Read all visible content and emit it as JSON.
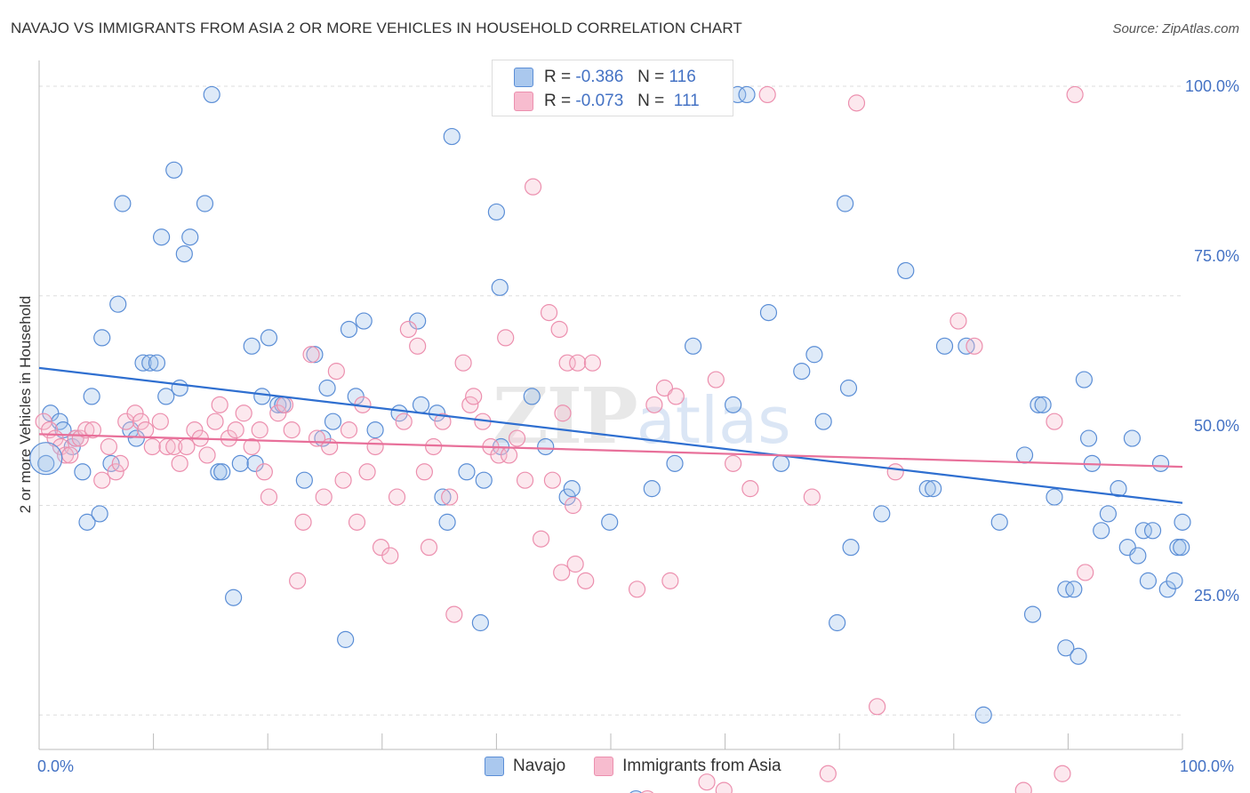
{
  "title": "NAVAJO VS IMMIGRANTS FROM ASIA 2 OR MORE VEHICLES IN HOUSEHOLD CORRELATION CHART",
  "source": "Source: ZipAtlas.com",
  "watermark": {
    "zip": "ZIP",
    "atlas": "atlas"
  },
  "legend": {
    "rows": [
      {
        "r_label": "R =",
        "r_value": "-0.386",
        "n_label": "N =",
        "n_value": "116",
        "color": "#aac8ee"
      },
      {
        "r_label": "R =",
        "r_value": "-0.073",
        "n_label": "N =",
        "n_value": "111",
        "color": "#f7bccf"
      }
    ]
  },
  "bottom_legend": [
    {
      "label": "Navajo",
      "color": "#aac8ee"
    },
    {
      "label": "Immigrants from Asia",
      "color": "#f7bccf"
    }
  ],
  "colors": {
    "navajo_stroke": "#5b8ed6",
    "navajo_fill": "rgba(160,195,235,0.35)",
    "navajo_line": "#2f6fd0",
    "asia_stroke": "#ec8fae",
    "asia_fill": "rgba(247,188,207,0.35)",
    "asia_line": "#e8709a",
    "grid": "#dddddd",
    "tick_text": "#4472c4"
  },
  "chart_data": {
    "type": "scatter",
    "title": "NAVAJO VS IMMIGRANTS FROM ASIA 2 OR MORE VEHICLES IN HOUSEHOLD CORRELATION CHART",
    "xlabel": "",
    "ylabel": "2 or more Vehicles in Household",
    "xlim": [
      0,
      100
    ],
    "ylim": [
      0,
      100
    ],
    "x_tick_labels": [
      "0.0%",
      "100.0%"
    ],
    "y_tick_labels": [
      "100.0%",
      "75.0%",
      "50.0%",
      "25.0%"
    ],
    "y_ticks": [
      100,
      75,
      50,
      25
    ],
    "grid": true,
    "legend_position": "top-center",
    "series": [
      {
        "name": "Navajo",
        "trend": {
          "x": [
            0,
            100
          ],
          "y": [
            66.4,
            50.3
          ]
        },
        "points": [
          [
            0.6,
            55
          ],
          [
            1,
            61
          ],
          [
            1.8,
            60
          ],
          [
            2.1,
            59
          ],
          [
            2.9,
            57
          ],
          [
            3.2,
            58
          ],
          [
            3.8,
            54
          ],
          [
            4.2,
            48
          ],
          [
            4.6,
            63
          ],
          [
            5.3,
            49
          ],
          [
            5.5,
            70
          ],
          [
            6.3,
            55
          ],
          [
            6.9,
            74
          ],
          [
            7.3,
            86
          ],
          [
            8,
            59
          ],
          [
            8.5,
            58
          ],
          [
            9.1,
            67
          ],
          [
            9.7,
            67
          ],
          [
            10.3,
            67
          ],
          [
            10.7,
            82
          ],
          [
            11.1,
            63
          ],
          [
            11.8,
            90
          ],
          [
            12.3,
            64
          ],
          [
            12.7,
            80
          ],
          [
            13.2,
            82
          ],
          [
            14.5,
            86
          ],
          [
            15.1,
            99
          ],
          [
            15.7,
            54
          ],
          [
            16,
            54
          ],
          [
            17,
            39
          ],
          [
            17.6,
            55
          ],
          [
            18.6,
            69
          ],
          [
            18.9,
            55
          ],
          [
            19.5,
            63
          ],
          [
            20.1,
            70
          ],
          [
            20.9,
            62
          ],
          [
            21.3,
            62
          ],
          [
            23.2,
            53
          ],
          [
            24.1,
            68
          ],
          [
            24.8,
            58
          ],
          [
            25.2,
            64
          ],
          [
            25.7,
            60
          ],
          [
            26.8,
            34
          ],
          [
            27.1,
            71
          ],
          [
            27.7,
            63
          ],
          [
            28.4,
            72
          ],
          [
            29.4,
            59
          ],
          [
            31.5,
            61
          ],
          [
            33.1,
            72
          ],
          [
            33.4,
            62
          ],
          [
            34.8,
            61
          ],
          [
            35.3,
            51
          ],
          [
            35.7,
            48
          ],
          [
            36.1,
            94
          ],
          [
            37.4,
            54
          ],
          [
            38.6,
            36
          ],
          [
            38.9,
            53
          ],
          [
            40,
            85
          ],
          [
            40.3,
            76
          ],
          [
            40.4,
            57
          ],
          [
            43.1,
            63
          ],
          [
            44.3,
            57
          ],
          [
            46.2,
            51
          ],
          [
            46.6,
            52
          ],
          [
            49.9,
            48
          ],
          [
            52.2,
            15
          ],
          [
            53.6,
            52
          ],
          [
            55.6,
            55
          ],
          [
            57.2,
            69
          ],
          [
            60.7,
            62
          ],
          [
            61.1,
            99
          ],
          [
            61.9,
            99
          ],
          [
            63.8,
            73
          ],
          [
            64.9,
            55
          ],
          [
            66.7,
            66
          ],
          [
            67.8,
            68
          ],
          [
            68.6,
            60
          ],
          [
            69.8,
            36
          ],
          [
            70.5,
            86
          ],
          [
            70.8,
            64
          ],
          [
            71,
            45
          ],
          [
            73.7,
            49
          ],
          [
            75.8,
            78
          ],
          [
            77.7,
            52
          ],
          [
            78.2,
            52
          ],
          [
            79.2,
            69
          ],
          [
            81.1,
            69
          ],
          [
            82.6,
            25
          ],
          [
            84,
            48
          ],
          [
            86.2,
            56
          ],
          [
            86.9,
            37
          ],
          [
            87.4,
            62
          ],
          [
            87.8,
            62
          ],
          [
            88.8,
            51
          ],
          [
            89.8,
            33
          ],
          [
            89.8,
            40
          ],
          [
            90.5,
            40
          ],
          [
            90.9,
            32
          ],
          [
            91.4,
            65
          ],
          [
            91.8,
            58
          ],
          [
            92.1,
            55
          ],
          [
            92.9,
            47
          ],
          [
            93.5,
            49
          ],
          [
            94.4,
            52
          ],
          [
            95.2,
            45
          ],
          [
            95.6,
            58
          ],
          [
            96.1,
            44
          ],
          [
            96.6,
            47
          ],
          [
            97,
            41
          ],
          [
            97.4,
            47
          ],
          [
            98.1,
            55
          ],
          [
            98.7,
            40
          ],
          [
            99.3,
            41
          ],
          [
            99.6,
            45
          ],
          [
            99.9,
            45
          ],
          [
            100,
            48
          ]
        ]
      },
      {
        "name": "Immigrants from Asia",
        "trend": {
          "x": [
            0,
            100
          ],
          "y": [
            58.5,
            54.6
          ]
        },
        "points": [
          [
            0.4,
            60
          ],
          [
            0.9,
            59
          ],
          [
            1.4,
            58
          ],
          [
            1.9,
            57
          ],
          [
            2.3,
            56
          ],
          [
            2.7,
            56
          ],
          [
            3.2,
            58
          ],
          [
            3.6,
            58
          ],
          [
            4.1,
            59
          ],
          [
            4.7,
            59
          ],
          [
            5.5,
            53
          ],
          [
            6.1,
            57
          ],
          [
            6.7,
            54
          ],
          [
            7.1,
            55
          ],
          [
            7.6,
            60
          ],
          [
            8.4,
            61
          ],
          [
            8.9,
            60
          ],
          [
            9.3,
            59
          ],
          [
            9.9,
            57
          ],
          [
            10.6,
            60
          ],
          [
            11.2,
            57
          ],
          [
            11.8,
            57
          ],
          [
            12.3,
            55
          ],
          [
            12.9,
            57
          ],
          [
            13.6,
            59
          ],
          [
            14.1,
            58
          ],
          [
            14.7,
            56
          ],
          [
            15.4,
            60
          ],
          [
            15.8,
            62
          ],
          [
            16.6,
            58
          ],
          [
            17.2,
            59
          ],
          [
            17.9,
            61
          ],
          [
            18.6,
            57
          ],
          [
            19.3,
            59
          ],
          [
            19.7,
            54
          ],
          [
            20.1,
            51
          ],
          [
            20.9,
            61
          ],
          [
            21.5,
            62
          ],
          [
            22.1,
            59
          ],
          [
            22.6,
            41
          ],
          [
            23.1,
            48
          ],
          [
            23.8,
            68
          ],
          [
            24.3,
            58
          ],
          [
            24.9,
            51
          ],
          [
            25.4,
            57
          ],
          [
            26,
            66
          ],
          [
            26.6,
            53
          ],
          [
            27.1,
            59
          ],
          [
            27.8,
            48
          ],
          [
            28.3,
            62
          ],
          [
            28.7,
            54
          ],
          [
            29.4,
            57
          ],
          [
            29.9,
            45
          ],
          [
            30.7,
            44
          ],
          [
            31.3,
            51
          ],
          [
            31.9,
            60
          ],
          [
            32.3,
            71
          ],
          [
            33.1,
            69
          ],
          [
            33.7,
            54
          ],
          [
            34.1,
            45
          ],
          [
            34.5,
            57
          ],
          [
            35.3,
            60
          ],
          [
            35.9,
            51
          ],
          [
            36.3,
            37
          ],
          [
            37.1,
            67
          ],
          [
            37.7,
            62
          ],
          [
            38,
            63
          ],
          [
            38.8,
            60
          ],
          [
            39.5,
            57
          ],
          [
            40.2,
            56
          ],
          [
            40.8,
            70
          ],
          [
            41.1,
            56
          ],
          [
            41.8,
            58
          ],
          [
            42.5,
            53
          ],
          [
            43.2,
            88
          ],
          [
            43.9,
            46
          ],
          [
            44.6,
            73
          ],
          [
            44.9,
            53
          ],
          [
            45.5,
            71
          ],
          [
            45.8,
            61
          ],
          [
            46.2,
            67
          ],
          [
            46.7,
            50
          ],
          [
            47.1,
            67
          ],
          [
            47.8,
            41
          ],
          [
            48.4,
            67
          ],
          [
            53.2,
            15
          ],
          [
            53.8,
            62
          ],
          [
            54.7,
            64
          ],
          [
            55.7,
            63
          ],
          [
            58.4,
            17
          ],
          [
            59.2,
            65
          ],
          [
            59.9,
            16
          ],
          [
            60.7,
            55
          ],
          [
            62.2,
            52
          ],
          [
            63.7,
            99
          ],
          [
            67.6,
            51
          ],
          [
            69,
            18
          ],
          [
            71.5,
            98
          ],
          [
            74.9,
            54
          ],
          [
            80.4,
            72
          ],
          [
            81.8,
            69
          ],
          [
            86.1,
            16
          ],
          [
            88.8,
            60
          ],
          [
            89.5,
            18
          ],
          [
            90.6,
            99
          ],
          [
            91.5,
            42
          ],
          [
            52.3,
            40
          ],
          [
            46.9,
            43
          ],
          [
            55.2,
            41
          ],
          [
            45.7,
            42
          ],
          [
            73.3,
            26
          ]
        ]
      }
    ]
  }
}
